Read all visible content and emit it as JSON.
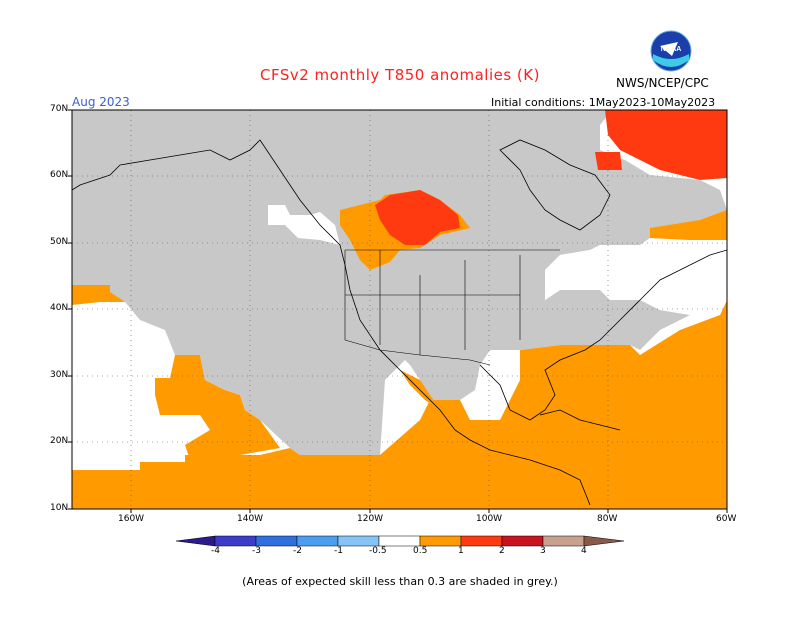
{
  "title": "CFSv2 monthly T850 anomalies (K)",
  "agency": "NWS/NCEP/CPC",
  "logo_text": "NOAA",
  "valid_month": "Aug 2023",
  "initial_conditions": "Initial conditions: 1May2023-10May2023",
  "lat_labels": [
    "70N",
    "60N",
    "50N",
    "40N",
    "30N",
    "20N",
    "10N"
  ],
  "lon_labels": [
    "160W",
    "140W",
    "120W",
    "100W",
    "80W",
    "60W"
  ],
  "colorbar": {
    "labels": [
      "-4",
      "-3",
      "-2",
      "-1",
      "-0.5",
      "0.5",
      "1",
      "2",
      "3",
      "4"
    ],
    "colors": [
      "#2e1a8c",
      "#3c3cc8",
      "#2f6fe0",
      "#4a9df0",
      "#85c4f5",
      "#ffffff",
      "#ff9a00",
      "#ff3a10",
      "#c8141e",
      "#9a1418",
      "#c8a090",
      "#8a5a48"
    ]
  },
  "map_colors": {
    "low_skill_grey": "#c8c8c8",
    "neutral": "#ffffff",
    "anomaly_0_5_to_1": "#ff9a00",
    "anomaly_1_to_2": "#ff3a10"
  },
  "footnote": "(Areas of expected skill less than 0.3 are shaded in grey.)"
}
